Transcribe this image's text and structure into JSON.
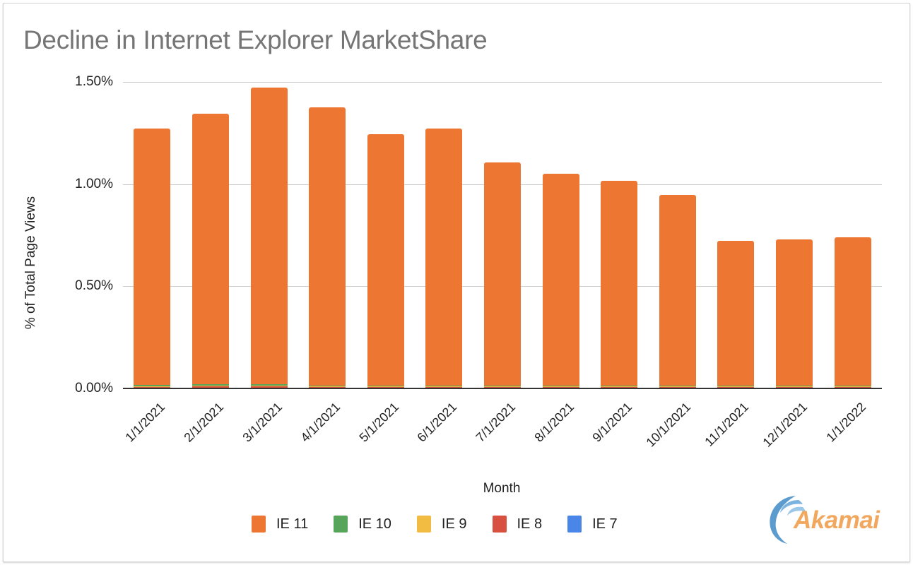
{
  "chart_data": {
    "type": "bar",
    "stacked": true,
    "title": "Decline in Internet Explorer MarketShare",
    "xlabel": "Month",
    "ylabel": "% of Total Page Views",
    "ylim": [
      0,
      1.5
    ],
    "yticks": [
      "0.00%",
      "0.50%",
      "1.00%",
      "1.50%"
    ],
    "ytick_values": [
      0,
      0.5,
      1.0,
      1.5
    ],
    "grid": true,
    "legend_position": "bottom",
    "categories": [
      "1/1/2021",
      "2/1/2021",
      "3/1/2021",
      "4/1/2021",
      "5/1/2021",
      "6/1/2021",
      "7/1/2021",
      "8/1/2021",
      "9/1/2021",
      "10/1/2021",
      "11/1/2021",
      "12/1/2021",
      "1/1/2022"
    ],
    "series": [
      {
        "name": "IE 11",
        "color": "#ec7632",
        "values": [
          1.252,
          1.323,
          1.451,
          1.362,
          1.231,
          1.259,
          1.093,
          1.038,
          1.003,
          0.934,
          0.707,
          0.714,
          0.727
        ]
      },
      {
        "name": "IE 10",
        "color": "#57a55a",
        "values": [
          0.007,
          0.007,
          0.006,
          0.004,
          0.004,
          0.004,
          0.004,
          0.004,
          0.004,
          0.004,
          0.004,
          0.004,
          0.004
        ]
      },
      {
        "name": "IE 9",
        "color": "#f2bc42",
        "values": [
          0.005,
          0.004,
          0.002,
          0.001,
          0.001,
          0.001,
          0.001,
          0.001,
          0.001,
          0.001,
          0.001,
          0.001,
          0.001
        ]
      },
      {
        "name": "IE 8",
        "color": "#d85140",
        "values": [
          0.002,
          0.007,
          0.007,
          0.002,
          0.002,
          0.002,
          0.002,
          0.002,
          0.002,
          0.002,
          0.002,
          0.002,
          0.002
        ]
      },
      {
        "name": "IE 7",
        "color": "#4a86e8",
        "values": [
          0,
          0,
          0,
          0,
          0,
          0,
          0,
          0,
          0,
          0,
          0,
          0,
          0
        ]
      }
    ]
  },
  "logo": {
    "text": "Akamai",
    "icon": "akamai-wave-icon"
  }
}
